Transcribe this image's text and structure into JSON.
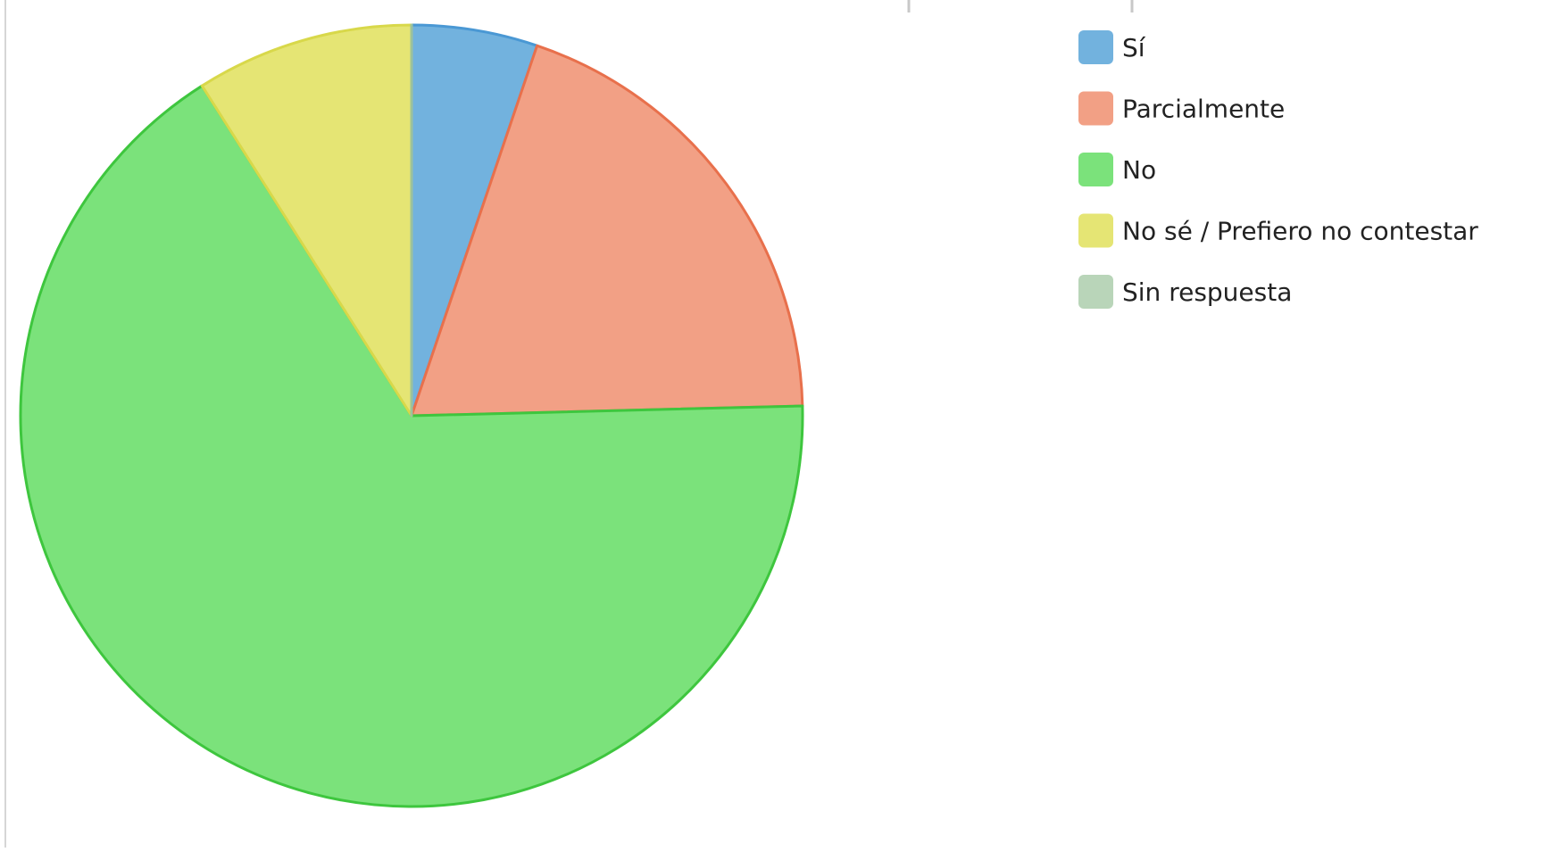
{
  "chart_data": {
    "type": "pie",
    "categories": [
      "Sí",
      "Parcialmente",
      "No",
      "No sé / Prefiero no contestar",
      "Sin respuesta"
    ],
    "values": [
      5.2,
      19.4,
      66.4,
      9.0,
      0
    ],
    "colors": [
      "#72b2de",
      "#f2a085",
      "#7be27b",
      "#e5e574",
      "#b9d5b9"
    ],
    "stroke_colors": [
      "#4a98d4",
      "#e8704c",
      "#3ec63e",
      "#d8d84a",
      "#9cc29c"
    ],
    "legend": "right"
  }
}
